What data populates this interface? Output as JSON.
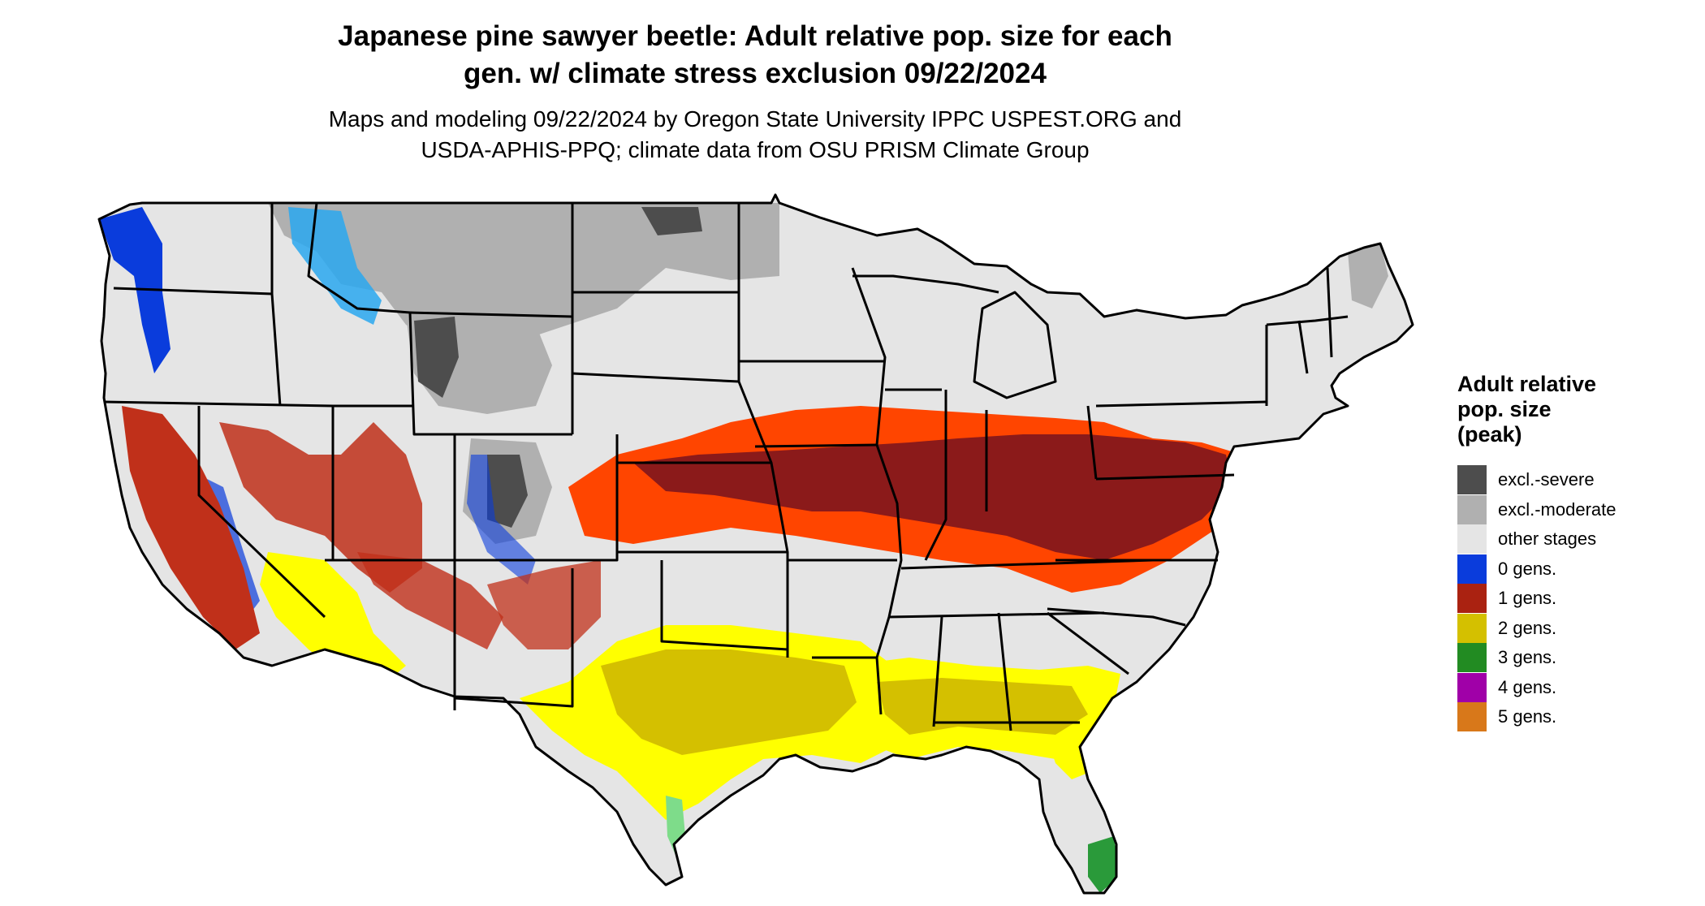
{
  "title_line1": "Japanese pine sawyer beetle: Adult relative pop. size for each",
  "title_line2": "gen. w/ climate stress exclusion 09/22/2024",
  "subtitle_line1": "Maps and modeling 09/22/2024 by Oregon State University IPPC USPEST.ORG and",
  "subtitle_line2": "USDA-APHIS-PPQ; climate data from OSU PRISM Climate Group",
  "legend": {
    "title_lines": [
      "Adult relative",
      "pop. size",
      "(peak)"
    ],
    "items": [
      {
        "label": "excl.-severe",
        "color": "#4d4d4d"
      },
      {
        "label": "excl.-moderate",
        "color": "#b0b0b0"
      },
      {
        "label": "other stages",
        "color": "#e5e5e5"
      },
      {
        "label": "0 gens.",
        "color": "#0a3cdc"
      },
      {
        "label": "1 gens.",
        "color": "#aa2211"
      },
      {
        "label": "2 gens.",
        "color": "#d4c000"
      },
      {
        "label": "3 gens.",
        "color": "#228b22"
      },
      {
        "label": "4 gens.",
        "color": "#a000a8"
      },
      {
        "label": "5 gens.",
        "color": "#d8781a"
      }
    ]
  },
  "map_colors": {
    "land": "#e5e5e5",
    "excl_severe": "#4d4d4d",
    "excl_moderate": "#b0b0b0",
    "zero_gens": "#0a3cdc",
    "zero_gens_light": "#2aa8f0",
    "one_gen_dark": "#8b1a1a",
    "one_gen_bright": "#ff4500",
    "one_gen_mid": "#c0301a",
    "two_gens_bright": "#ffff00",
    "two_gens_dark": "#d4c000",
    "three_gens": "#2a9a3a",
    "three_gens_light": "#7edc8a",
    "border": "#000000"
  }
}
